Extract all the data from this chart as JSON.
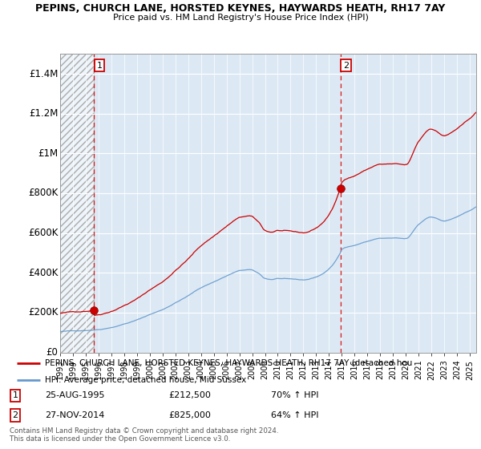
{
  "title1": "PEPINS, CHURCH LANE, HORSTED KEYNES, HAYWARDS HEATH, RH17 7AY",
  "title2": "Price paid vs. HM Land Registry's House Price Index (HPI)",
  "ylim": [
    0,
    1500000
  ],
  "yticks": [
    0,
    200000,
    400000,
    600000,
    800000,
    1000000,
    1200000,
    1400000
  ],
  "ytick_labels": [
    "£0",
    "£200K",
    "£400K",
    "£600K",
    "£800K",
    "£1M",
    "£1.2M",
    "£1.4M"
  ],
  "xmin": 1993,
  "xmax": 2025.5,
  "sale1_year": 1995.65,
  "sale1_price": 212500,
  "sale1_label": "25-AUG-1995",
  "sale1_amount": "£212,500",
  "sale1_pct": "70% ↑ HPI",
  "sale2_year": 2014.9,
  "sale2_price": 825000,
  "sale2_label": "27-NOV-2014",
  "sale2_amount": "£825,000",
  "sale2_pct": "64% ↑ HPI",
  "line1_color": "#cc0000",
  "line2_color": "#6699cc",
  "vline_color": "#cc0000",
  "marker_color": "#cc0000",
  "legend_line1": "PEPINS, CHURCH LANE, HORSTED KEYNES, HAYWARDS HEATH, RH17 7AY (detached hou",
  "legend_line2": "HPI: Average price, detached house, Mid Sussex",
  "footer1": "Contains HM Land Registry data © Crown copyright and database right 2024.",
  "footer2": "This data is licensed under the Open Government Licence v3.0.",
  "plot_bg": "#dce9f5"
}
